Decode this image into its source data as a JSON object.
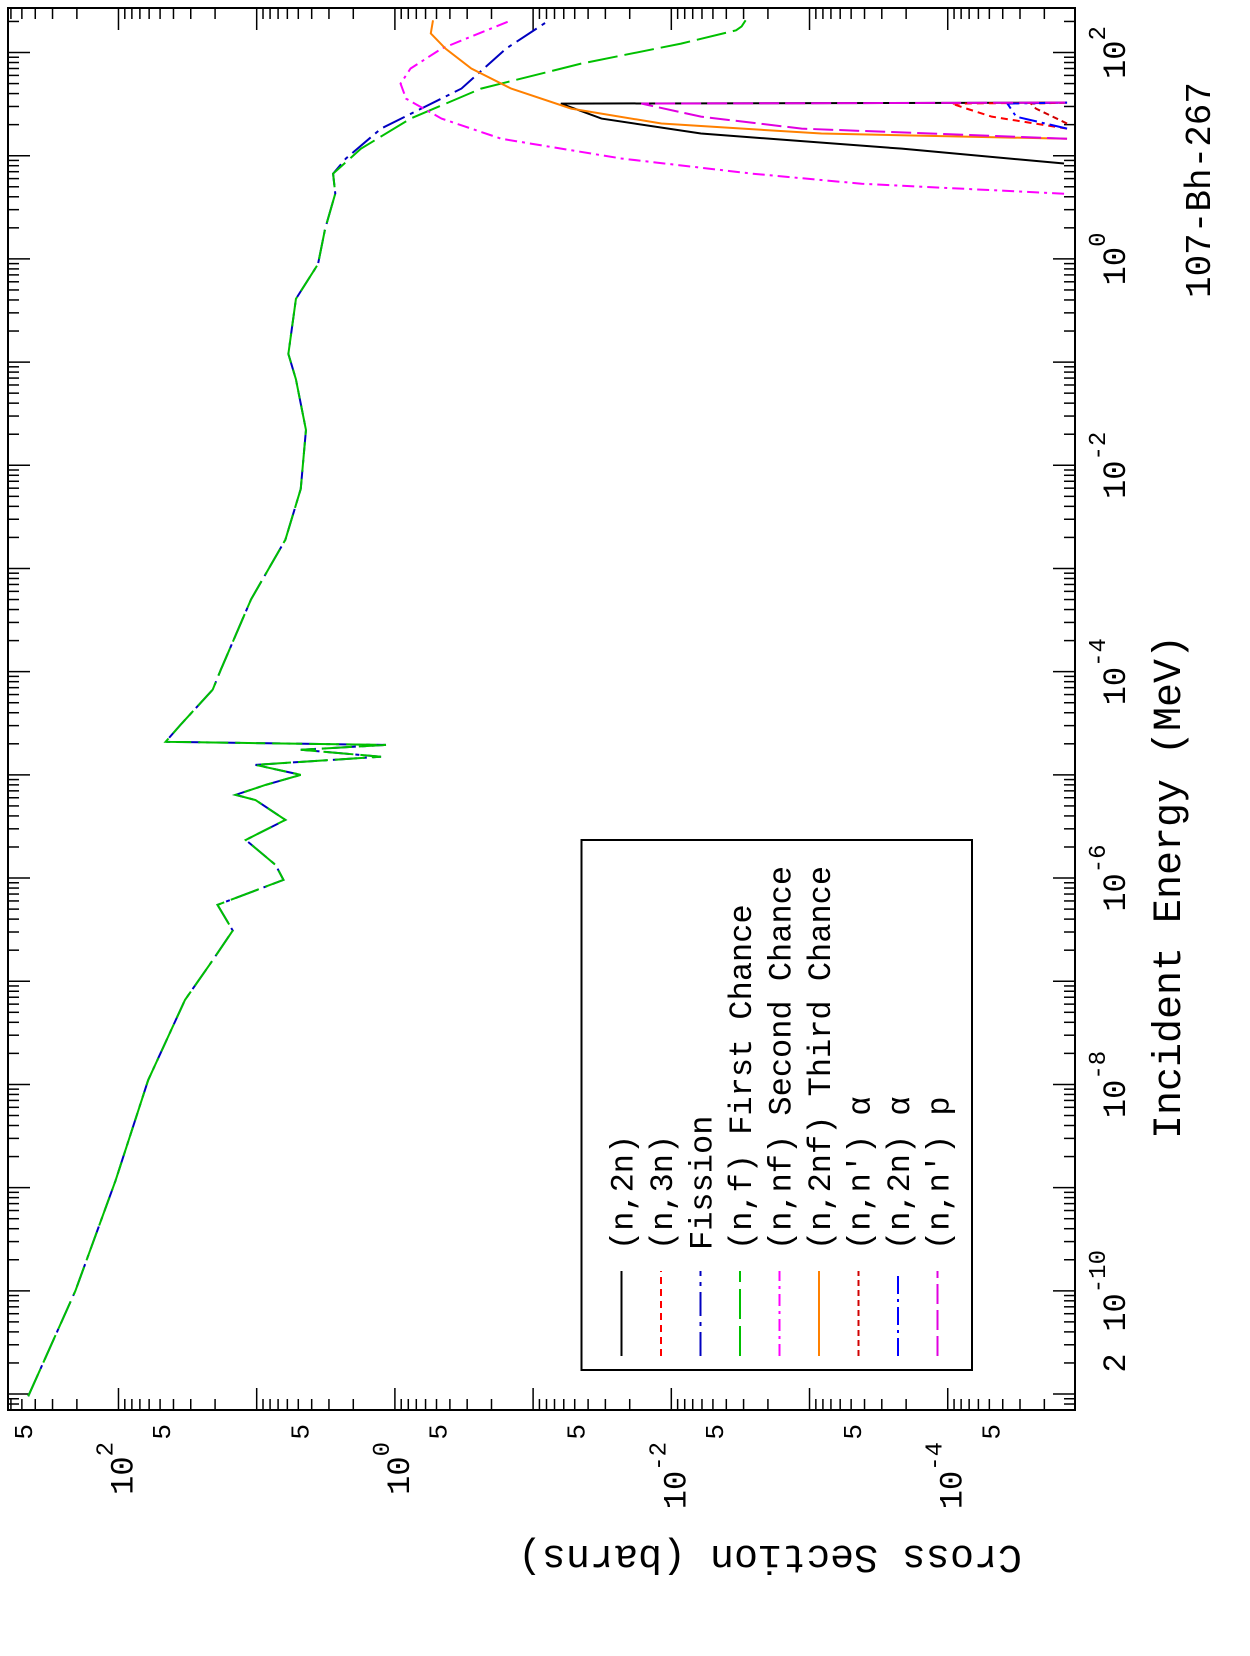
{
  "chart_data": {
    "type": "line",
    "title": "107-Bh-267",
    "x_label": "Incident Energy (MeV)",
    "y_label": "Cross Section (barns)",
    "xscale": "log",
    "yscale": "log",
    "xlim": [
      7e-12,
      270
    ],
    "ylim": [
      1.2e-05,
      630
    ],
    "xticks": [
      {
        "value": 2e-11,
        "label": "2"
      },
      {
        "value": 1e-10,
        "label": "10",
        "exponent": "-10"
      },
      {
        "value": 1e-08,
        "label": "10",
        "exponent": "-8"
      },
      {
        "value": 1e-06,
        "label": "10",
        "exponent": "-6"
      },
      {
        "value": 0.0001,
        "label": "10",
        "exponent": "-4"
      },
      {
        "value": 0.01,
        "label": "10",
        "exponent": "-2"
      },
      {
        "value": 1,
        "label": "10",
        "exponent": "0"
      },
      {
        "value": 100,
        "label": "10",
        "exponent": "2"
      }
    ],
    "xminorticks": [
      8e-12,
      9e-12,
      1e-11,
      3e-11,
      4e-11,
      5e-11,
      6e-11,
      7e-11,
      8e-11,
      9e-11,
      2e-10,
      3e-10,
      4e-10,
      5e-10,
      6e-10,
      7e-10,
      8e-10,
      9e-10,
      1e-09,
      2e-09,
      3e-09,
      4e-09,
      5e-09,
      6e-09,
      7e-09,
      8e-09,
      9e-09,
      2e-08,
      3e-08,
      4e-08,
      5e-08,
      6e-08,
      7e-08,
      8e-08,
      9e-08,
      1e-07,
      2e-07,
      3e-07,
      4e-07,
      5e-07,
      6e-07,
      7e-07,
      8e-07,
      9e-07,
      2e-06,
      3e-06,
      4e-06,
      5e-06,
      6e-06,
      7e-06,
      8e-06,
      9e-06,
      1e-05,
      2e-05,
      3e-05,
      4e-05,
      5e-05,
      6e-05,
      7e-05,
      8e-05,
      9e-05,
      0.0002,
      0.0003,
      0.0004,
      0.0005,
      0.0006,
      0.0007,
      0.0008,
      0.0009,
      0.001,
      0.002,
      0.003,
      0.004,
      0.005,
      0.006,
      0.007,
      0.008,
      0.009,
      0.02,
      0.03,
      0.04,
      0.05,
      0.06,
      0.07,
      0.08,
      0.09,
      0.1,
      0.2,
      0.3,
      0.4,
      0.5,
      0.6,
      0.7,
      0.8,
      0.9,
      2,
      3,
      4,
      5,
      6,
      7,
      8,
      9,
      10,
      20,
      30,
      40,
      50,
      60,
      70,
      80,
      90,
      200
    ],
    "yticks": [
      {
        "value": 500,
        "label": "5"
      },
      {
        "value": 100,
        "label": "10",
        "exponent": "2"
      },
      {
        "value": 50,
        "label": "5"
      },
      {
        "value": 5,
        "label": "5"
      },
      {
        "value": 1,
        "label": "10",
        "exponent": "0"
      },
      {
        "value": 0.5,
        "label": "5"
      },
      {
        "value": 0.05,
        "label": "5"
      },
      {
        "value": 0.01,
        "label": "10",
        "exponent": "-2"
      },
      {
        "value": 0.005,
        "label": "5"
      },
      {
        "value": 0.0005,
        "label": "5"
      },
      {
        "value": 0.0001,
        "label": "10",
        "exponent": "-4"
      },
      {
        "value": 5e-05,
        "label": "5"
      }
    ],
    "yminorticks": [
      2e-05,
      3e-05,
      4e-05,
      6e-05,
      7e-05,
      8e-05,
      9e-05,
      0.0002,
      0.0003,
      0.0004,
      0.0006,
      0.0007,
      0.0008,
      0.0009,
      0.001,
      0.002,
      0.003,
      0.004,
      0.006,
      0.007,
      0.008,
      0.009,
      0.02,
      0.03,
      0.04,
      0.06,
      0.07,
      0.08,
      0.09,
      0.1,
      0.2,
      0.3,
      0.4,
      0.6,
      0.7,
      0.8,
      0.9,
      2,
      3,
      4,
      6,
      7,
      8,
      9,
      10,
      20,
      30,
      40,
      60,
      70,
      80,
      90,
      200,
      300,
      400,
      600
    ],
    "legend": "lower left",
    "rotation": -90,
    "series": [
      {
        "name": "(n,2n)",
        "color": "#000000",
        "dash": "none",
        "x": [
          8.4,
          11.7,
          16.4,
          22.9,
          32,
          32.7
        ],
        "values": [
          1.44e-05,
          0.000215,
          0.0061,
          0.032,
          0.063,
          1.37e-05
        ]
      },
      {
        "name": "(n,3n)",
        "color": "#ff0000",
        "dash": "7,5",
        "x": [
          18.3,
          23.9,
          28.6,
          32,
          32.7
        ],
        "values": [
          1.37e-05,
          4.8e-05,
          7.3e-05,
          9.4e-05,
          1.37e-05
        ]
      },
      {
        "name": "Fission",
        "color": "#0000c0",
        "dash": "24,6,4,6",
        "x": [
          9.5e-12,
          1e-10,
          1.17e-09,
          1.1e-08,
          6.6e-08,
          1.6e-07,
          3.1e-07,
          5.5e-07,
          9.6e-07,
          1.34e-06,
          2.34e-06,
          3.66e-06,
          5.7e-06,
          6.4e-06,
          8e-06,
          1e-05,
          1.25e-05,
          1.5e-05,
          1.75e-05,
          1.95e-05,
          2.09e-05,
          3.05e-05,
          6.7e-05,
          0.000104,
          0.0005,
          0.0019,
          0.0059,
          0.022,
          0.068,
          0.12,
          0.41,
          0.89,
          1.95,
          4.3,
          6.7,
          9.4,
          18.3,
          44.7,
          109,
          205
        ],
        "values": [
          450,
          205,
          105,
          61,
          33,
          20.8,
          14.9,
          19.2,
          6.4,
          7.3,
          12,
          6.2,
          10.2,
          14.2,
          8.6,
          4.8,
          10.2,
          1.26,
          4.8,
          1.16,
          45.6,
          35.6,
          20.8,
          18.2,
          11,
          6.2,
          4.8,
          4.4,
          5.2,
          5.9,
          5.2,
          3.6,
          3.2,
          2.7,
          2.8,
          2.26,
          1.26,
          0.33,
          0.157,
          0.0766
        ]
      },
      {
        "name": "(n,f) First Chance",
        "color": "#00c000",
        "dash": "30,7",
        "x": [
          9.5e-12,
          1e-10,
          1.17e-09,
          1.1e-08,
          6.6e-08,
          1.6e-07,
          3.1e-07,
          5.5e-07,
          9.6e-07,
          1.34e-06,
          2.34e-06,
          3.66e-06,
          5.7e-06,
          6.4e-06,
          8e-06,
          1e-05,
          1.25e-05,
          1.5e-05,
          1.75e-05,
          1.95e-05,
          2.09e-05,
          3.05e-05,
          6.7e-05,
          0.000104,
          0.0005,
          0.0019,
          0.0059,
          0.022,
          0.068,
          0.12,
          0.41,
          0.89,
          1.95,
          4.3,
          6.7,
          11.7,
          22.9,
          44.7,
          78,
          122,
          164,
          179,
          205
        ],
        "values": [
          450,
          205,
          105,
          61,
          33,
          20.8,
          14.9,
          19.2,
          6.4,
          7.3,
          12,
          6.2,
          10.2,
          14.2,
          8.6,
          4.8,
          10.2,
          1.26,
          4.8,
          1.16,
          45.6,
          35.6,
          20.8,
          18.2,
          11,
          6.2,
          4.8,
          4.4,
          5.2,
          5.9,
          5.2,
          3.6,
          3.2,
          2.7,
          2.8,
          1.76,
          0.77,
          0.238,
          0.045,
          0.0085,
          0.0034,
          0.0031,
          0.0029
        ]
      },
      {
        "name": "(n,nf) Second Chance",
        "color": "#ff00ff",
        "dash": "12,5,3,5",
        "x": [
          4.28,
          5.35,
          6.7,
          9.4,
          14.6,
          22.9,
          35.7,
          50,
          70,
          109,
          205
        ],
        "values": [
          1.44e-05,
          0.00042,
          0.0026,
          0.023,
          0.17,
          0.46,
          0.83,
          0.91,
          0.77,
          0.46,
          0.144
        ]
      },
      {
        "name": "(n,2nf) Third Chance",
        "color": "#ff8000",
        "dash": "none",
        "x": [
          14.6,
          16.4,
          20.5,
          28.6,
          44.7,
          70,
          109,
          153,
          205
        ],
        "values": [
          1.37e-05,
          0.00082,
          0.0118,
          0.053,
          0.144,
          0.28,
          0.43,
          0.55,
          0.53
        ]
      },
      {
        "name": "(n,n') α",
        "color": "#d00000",
        "dash": "6,4",
        "x": [
          20.5,
          28.6,
          32,
          32.7
        ],
        "values": [
          1.37e-05,
          2.3e-05,
          2.5e-05,
          1.37e-05
        ]
      },
      {
        "name": "(n,2n) α",
        "color": "#0000ff",
        "dash": "18,5,3,5",
        "x": [
          18.3,
          23.9,
          32,
          32.7
        ],
        "values": [
          1.37e-05,
          3.2e-05,
          3.7e-05,
          1.37e-05
        ]
      },
      {
        "name": "(n,n') p",
        "color": "#e000e0",
        "dash": "20,6",
        "x": [
          14.6,
          18.3,
          23.9,
          32,
          32.7
        ],
        "values": [
          1.37e-05,
          0.00114,
          0.0061,
          0.0165,
          1.37e-05
        ]
      }
    ]
  }
}
